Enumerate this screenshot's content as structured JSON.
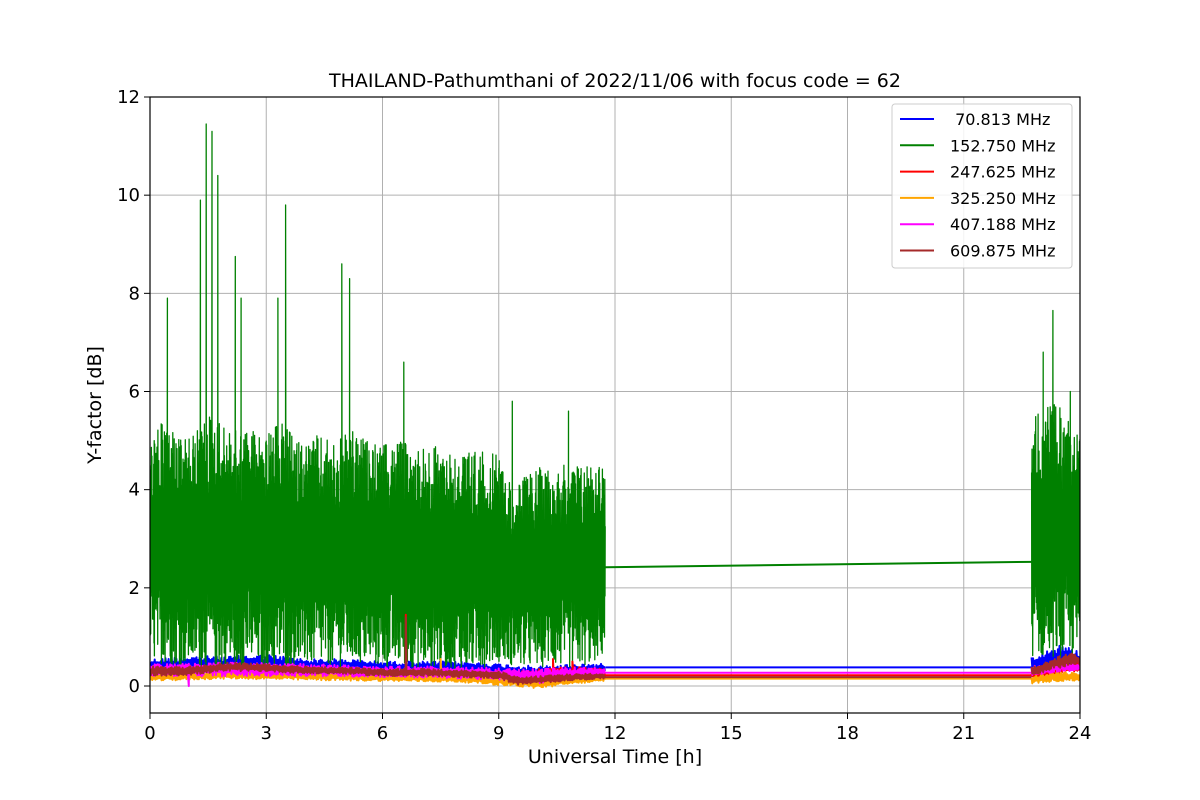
{
  "chart_data": {
    "type": "line",
    "title": "THAILAND-Pathumthani of 2022/11/06 with focus code = 62",
    "xlabel": "Universal Time [h]",
    "ylabel": "Y-factor [dB]",
    "xlim": [
      0,
      24
    ],
    "ylim": [
      -0.55,
      12
    ],
    "xticks": [
      0,
      3,
      6,
      9,
      12,
      15,
      18,
      21,
      24
    ],
    "yticks": [
      0,
      2,
      4,
      6,
      8,
      10,
      12
    ],
    "grid": true,
    "legend_position": "top-right",
    "data_gap": [
      11.75,
      22.75
    ],
    "series": [
      {
        "name": " 70.813 MHz",
        "color": "#0000ff",
        "envelope": {
          "x": [
            0,
            1,
            2,
            3,
            4,
            5,
            6,
            7,
            8,
            9,
            10,
            11,
            11.75
          ],
          "low": [
            0.25,
            0.25,
            0.28,
            0.3,
            0.28,
            0.27,
            0.25,
            0.24,
            0.24,
            0.2,
            0.1,
            0.2,
            0.25
          ],
          "high": [
            0.55,
            0.62,
            0.6,
            0.65,
            0.55,
            0.55,
            0.5,
            0.5,
            0.5,
            0.45,
            0.4,
            0.45,
            0.45
          ]
        },
        "gap_line": [
          [
            11.75,
            0.38
          ],
          [
            22.75,
            0.38
          ]
        ],
        "tail": {
          "x": [
            22.75,
            23.5,
            24
          ],
          "low": [
            0.3,
            0.35,
            0.35
          ],
          "high": [
            0.6,
            0.85,
            0.7
          ]
        }
      },
      {
        "name": "152.750 MHz",
        "color": "#008000",
        "envelope": {
          "x": [
            0,
            0.4,
            0.8,
            1.2,
            1.5,
            1.8,
            2.2,
            2.6,
            3.0,
            3.4,
            3.8,
            4.3,
            4.8,
            5.2,
            5.6,
            6.0,
            6.5,
            7.0,
            7.5,
            8.0,
            8.5,
            9.0,
            9.4,
            9.8,
            10.3,
            10.8,
            11.3,
            11.75
          ],
          "low": [
            0.5,
            0.45,
            0.4,
            0.4,
            0.35,
            0.3,
            0.35,
            0.4,
            0.3,
            0.35,
            0.4,
            0.4,
            0.35,
            0.45,
            0.4,
            0.35,
            0.4,
            0.35,
            0.4,
            0.3,
            0.35,
            0.5,
            0.4,
            0.35,
            0.4,
            0.35,
            0.4,
            0.6
          ],
          "high": [
            5.0,
            5.5,
            5.0,
            5.2,
            5.6,
            5.4,
            5.2,
            5.3,
            5.1,
            5.4,
            5.0,
            5.1,
            5.0,
            5.2,
            5.0,
            4.9,
            5.0,
            4.9,
            4.9,
            4.8,
            4.8,
            4.7,
            4.0,
            4.4,
            4.5,
            4.5,
            4.6,
            4.6
          ]
        },
        "spikes": [
          [
            0.45,
            7.9
          ],
          [
            1.3,
            9.9
          ],
          [
            1.45,
            11.45
          ],
          [
            1.6,
            11.3
          ],
          [
            1.75,
            10.4
          ],
          [
            2.2,
            8.75
          ],
          [
            2.35,
            7.9
          ],
          [
            3.5,
            9.8
          ],
          [
            3.3,
            7.9
          ],
          [
            4.95,
            8.6
          ],
          [
            5.15,
            8.3
          ],
          [
            6.55,
            6.6
          ],
          [
            9.35,
            5.8
          ],
          [
            10.8,
            5.6
          ]
        ],
        "gap_line": [
          [
            11.75,
            2.42
          ],
          [
            22.75,
            2.53
          ]
        ],
        "tail": {
          "x": [
            22.75,
            23.0,
            23.3,
            23.6,
            24
          ],
          "low": [
            0.6,
            0.55,
            0.6,
            0.55,
            0.6
          ],
          "high": [
            5.5,
            5.6,
            5.8,
            5.6,
            5.3
          ]
        },
        "tail_spikes": [
          [
            23.05,
            6.8
          ],
          [
            23.3,
            7.65
          ],
          [
            23.75,
            6.0
          ]
        ]
      },
      {
        "name": "247.625 MHz",
        "color": "#ff0000",
        "envelope": {
          "x": [
            0,
            2,
            4,
            6,
            8,
            9.3,
            10,
            11,
            11.75
          ],
          "low": [
            0.25,
            0.3,
            0.25,
            0.2,
            0.2,
            0.1,
            0.05,
            0.1,
            0.15
          ],
          "high": [
            0.35,
            0.42,
            0.38,
            0.35,
            0.33,
            0.3,
            0.35,
            0.4,
            0.35
          ]
        },
        "spikes": [
          [
            6.6,
            1.45
          ],
          [
            10.4,
            0.55
          ],
          [
            10.9,
            0.5
          ]
        ],
        "gap_line": [
          [
            11.75,
            0.22
          ],
          [
            22.75,
            0.22
          ]
        ],
        "tail": {
          "x": [
            22.75,
            23.5,
            24
          ],
          "low": [
            0.15,
            0.25,
            0.3
          ],
          "high": [
            0.3,
            0.45,
            0.5
          ]
        }
      },
      {
        "name": "325.250 MHz",
        "color": "#ffa500",
        "envelope": {
          "x": [
            0,
            2,
            4,
            6,
            8,
            9.3,
            10,
            11,
            11.75
          ],
          "low": [
            0.1,
            0.15,
            0.12,
            0.1,
            0.08,
            0.0,
            -0.05,
            0.05,
            0.1
          ],
          "high": [
            0.25,
            0.3,
            0.28,
            0.25,
            0.22,
            0.2,
            0.15,
            0.2,
            0.2
          ]
        },
        "spikes": [
          [
            7.5,
            0.55
          ]
        ],
        "gap_line": [
          [
            11.75,
            0.15
          ],
          [
            22.75,
            0.15
          ]
        ],
        "tail": {
          "x": [
            22.75,
            23.5,
            24
          ],
          "low": [
            0.05,
            0.1,
            0.1
          ],
          "high": [
            0.2,
            0.3,
            0.25
          ]
        }
      },
      {
        "name": "407.188 MHz",
        "color": "#ff00ff",
        "envelope": {
          "x": [
            0,
            2,
            4,
            6,
            8,
            9.3,
            10,
            11,
            11.75
          ],
          "low": [
            0.2,
            0.2,
            0.2,
            0.18,
            0.15,
            0.1,
            0.05,
            0.15,
            0.2
          ],
          "high": [
            0.45,
            0.48,
            0.45,
            0.4,
            0.4,
            0.35,
            0.35,
            0.38,
            0.38
          ]
        },
        "spikes": [
          [
            1.0,
            0.0
          ]
        ],
        "gap_line": [
          [
            11.75,
            0.27
          ],
          [
            22.75,
            0.27
          ]
        ],
        "tail": {
          "x": [
            22.75,
            23.5,
            24
          ],
          "low": [
            0.2,
            0.3,
            0.3
          ],
          "high": [
            0.4,
            0.5,
            0.45
          ]
        }
      },
      {
        "name": "609.875 MHz",
        "color": "#a52a2a",
        "envelope": {
          "x": [
            0,
            1,
            2,
            3,
            4,
            5,
            6,
            7,
            8,
            9,
            9.5,
            10,
            11,
            11.75
          ],
          "low": [
            0.2,
            0.22,
            0.3,
            0.3,
            0.25,
            0.25,
            0.2,
            0.2,
            0.18,
            0.15,
            0.02,
            0.05,
            0.12,
            0.15
          ],
          "high": [
            0.4,
            0.4,
            0.48,
            0.45,
            0.4,
            0.38,
            0.35,
            0.35,
            0.32,
            0.3,
            0.2,
            0.2,
            0.25,
            0.25
          ]
        },
        "spikes": [
          [
            6.6,
            1.4
          ]
        ],
        "gap_line": [
          [
            11.75,
            0.18
          ],
          [
            22.75,
            0.18
          ]
        ],
        "tail": {
          "x": [
            22.75,
            23.3,
            23.7,
            24
          ],
          "low": [
            0.2,
            0.35,
            0.4,
            0.45
          ],
          "high": [
            0.4,
            0.55,
            0.7,
            0.6
          ]
        }
      }
    ]
  }
}
